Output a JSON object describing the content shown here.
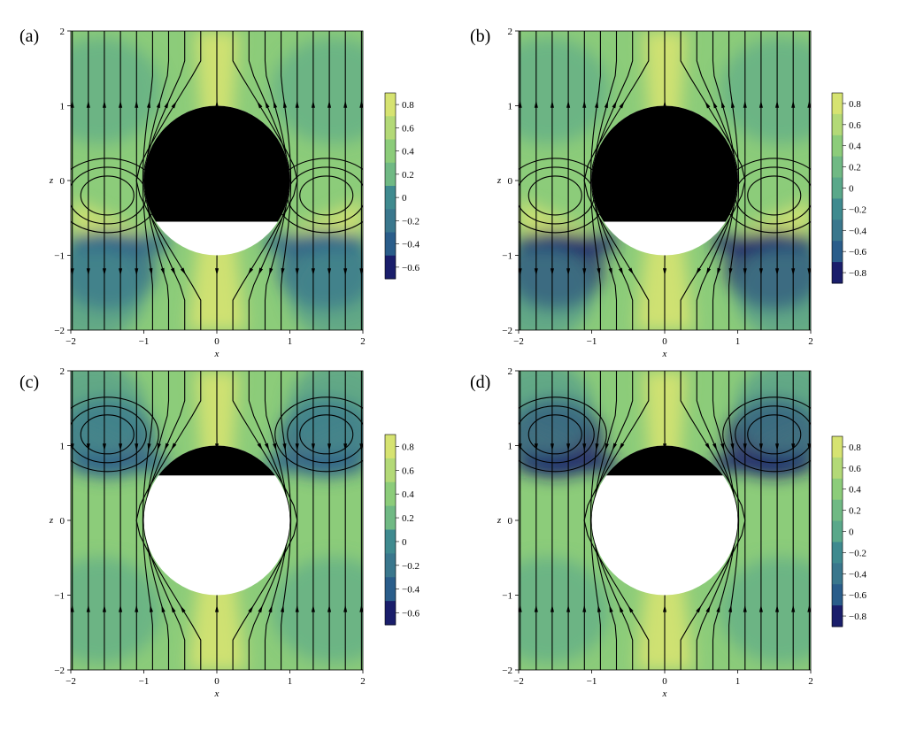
{
  "figure": {
    "panels": [
      {
        "label": "(a)",
        "xlabel": "x",
        "ylabel": "z",
        "xticks": [
          "−2",
          "−1",
          "0",
          "1",
          "2"
        ],
        "yticks": [
          "−2",
          "−1",
          "0",
          "1",
          "2"
        ],
        "colorbar_ticks": [
          "0.8",
          "0.6",
          "0.4",
          "0.2",
          "0",
          "−0.2",
          "−0.4",
          "−0.6"
        ],
        "black_region": "upper",
        "cut_level": -0.55
      },
      {
        "label": "(b)",
        "xlabel": "x",
        "ylabel": "z",
        "xticks": [
          "−2",
          "−1",
          "0",
          "1",
          "2"
        ],
        "yticks": [
          "−2",
          "−1",
          "0",
          "1",
          "2"
        ],
        "colorbar_ticks": [
          "0.8",
          "0.6",
          "0.4",
          "0.2",
          "0",
          "−0.2",
          "−0.4",
          "−0.6",
          "−0.8"
        ],
        "black_region": "upper",
        "cut_level": -0.55
      },
      {
        "label": "(c)",
        "xlabel": "x",
        "ylabel": "z",
        "xticks": [
          "−2",
          "−1",
          "0",
          "1",
          "2"
        ],
        "yticks": [
          "−2",
          "−1",
          "0",
          "1",
          "2"
        ],
        "colorbar_ticks": [
          "0.8",
          "0.6",
          "0.4",
          "0.2",
          "0",
          "−0.2",
          "−0.4",
          "−0.6"
        ],
        "black_region": "cap",
        "cut_level": 0.6
      },
      {
        "label": "(d)",
        "xlabel": "x",
        "ylabel": "z",
        "xticks": [
          "−2",
          "−1",
          "0",
          "1",
          "2"
        ],
        "yticks": [
          "−2",
          "−1",
          "0",
          "1",
          "2"
        ],
        "colorbar_ticks": [
          "0.8",
          "0.6",
          "0.4",
          "0.2",
          "0",
          "−0.2",
          "−0.4",
          "−0.6",
          "−0.8"
        ],
        "black_region": "cap",
        "cut_level": 0.6
      }
    ],
    "colors": {
      "high": "#d6e371",
      "mid_high": "#8ccc7a",
      "mid": "#5aa88a",
      "mid_low": "#3f8a8f",
      "low": "#2a5d8a",
      "lowest": "#1a1e6b",
      "body": "#000000"
    }
  }
}
